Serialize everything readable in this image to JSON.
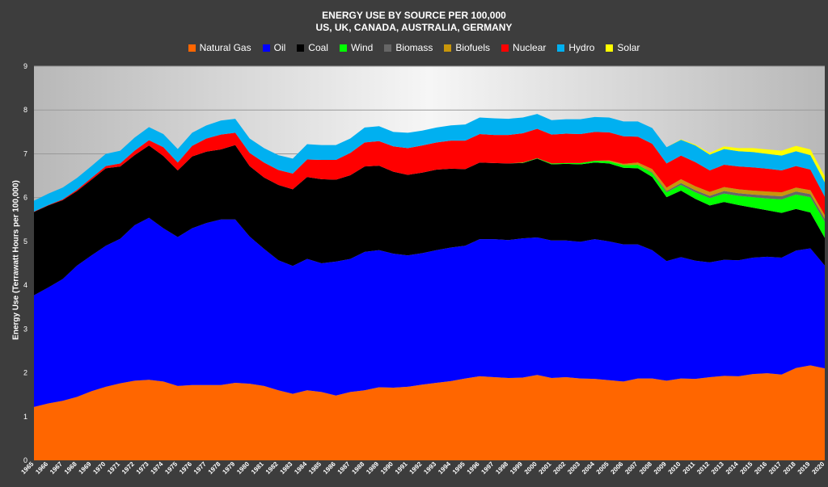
{
  "chart_data": {
    "type": "area",
    "stacked": true,
    "title": "ENERGY USE BY SOURCE PER 100,000",
    "subtitle": "US, UK, CANADA, AUSTRALIA, GERMANY",
    "xlabel": "",
    "ylabel": "Energy Use (Terrawatt Hours per 100,000)",
    "ylim": [
      0,
      9
    ],
    "yticks": [
      0,
      1,
      2,
      3,
      4,
      5,
      6,
      7,
      8,
      9
    ],
    "grid": true,
    "legend_position": "top",
    "x": [
      1965,
      1966,
      1967,
      1968,
      1969,
      1970,
      1971,
      1972,
      1973,
      1974,
      1975,
      1976,
      1977,
      1978,
      1979,
      1980,
      1981,
      1982,
      1983,
      1984,
      1985,
      1986,
      1987,
      1988,
      1989,
      1990,
      1991,
      1992,
      1993,
      1994,
      1995,
      1996,
      1997,
      1998,
      1999,
      2000,
      2001,
      2002,
      2003,
      2004,
      2005,
      2006,
      2007,
      2008,
      2009,
      2010,
      2011,
      2012,
      2013,
      2014,
      2015,
      2016,
      2017,
      2018,
      2019,
      2020
    ],
    "series": [
      {
        "name": "Natural Gas",
        "color": "#ff6600",
        "values": [
          1.22,
          1.3,
          1.36,
          1.45,
          1.58,
          1.68,
          1.76,
          1.82,
          1.84,
          1.8,
          1.7,
          1.72,
          1.72,
          1.72,
          1.77,
          1.75,
          1.7,
          1.6,
          1.52,
          1.6,
          1.56,
          1.48,
          1.56,
          1.6,
          1.67,
          1.66,
          1.68,
          1.73,
          1.77,
          1.81,
          1.87,
          1.92,
          1.9,
          1.88,
          1.89,
          1.95,
          1.88,
          1.9,
          1.87,
          1.86,
          1.83,
          1.8,
          1.87,
          1.87,
          1.82,
          1.87,
          1.86,
          1.9,
          1.93,
          1.92,
          1.97,
          1.99,
          1.96,
          2.11,
          2.17,
          2.1
        ]
      },
      {
        "name": "Oil",
        "color": "#0000ff",
        "values": [
          2.55,
          2.65,
          2.78,
          3.0,
          3.1,
          3.22,
          3.3,
          3.55,
          3.7,
          3.5,
          3.4,
          3.58,
          3.7,
          3.78,
          3.73,
          3.36,
          3.13,
          2.97,
          2.92,
          3.0,
          2.94,
          3.06,
          3.04,
          3.16,
          3.13,
          3.06,
          3.0,
          3.0,
          3.03,
          3.05,
          3.03,
          3.13,
          3.15,
          3.15,
          3.18,
          3.14,
          3.14,
          3.12,
          3.12,
          3.19,
          3.17,
          3.13,
          3.06,
          2.93,
          2.73,
          2.77,
          2.7,
          2.62,
          2.65,
          2.65,
          2.66,
          2.66,
          2.67,
          2.68,
          2.67,
          2.35
        ]
      },
      {
        "name": "Coal",
        "color": "#000000",
        "values": [
          1.9,
          1.87,
          1.8,
          1.7,
          1.73,
          1.77,
          1.65,
          1.6,
          1.65,
          1.65,
          1.52,
          1.64,
          1.63,
          1.6,
          1.7,
          1.61,
          1.63,
          1.72,
          1.75,
          1.87,
          1.92,
          1.87,
          1.91,
          1.95,
          1.93,
          1.87,
          1.84,
          1.84,
          1.84,
          1.8,
          1.75,
          1.75,
          1.74,
          1.75,
          1.72,
          1.8,
          1.74,
          1.75,
          1.77,
          1.75,
          1.78,
          1.75,
          1.74,
          1.67,
          1.46,
          1.52,
          1.41,
          1.3,
          1.32,
          1.26,
          1.14,
          1.06,
          1.02,
          0.95,
          0.82,
          0.63
        ]
      },
      {
        "name": "Wind",
        "color": "#00ff00",
        "values": [
          0,
          0,
          0,
          0,
          0,
          0,
          0,
          0,
          0,
          0,
          0,
          0,
          0,
          0,
          0,
          0,
          0,
          0,
          0,
          0,
          0,
          0,
          0,
          0,
          0,
          0,
          0,
          0,
          0,
          0,
          0,
          0,
          0,
          0,
          0.01,
          0.01,
          0.02,
          0.02,
          0.03,
          0.04,
          0.05,
          0.06,
          0.08,
          0.09,
          0.11,
          0.13,
          0.15,
          0.17,
          0.19,
          0.21,
          0.24,
          0.27,
          0.31,
          0.33,
          0.35,
          0.37
        ]
      },
      {
        "name": "Biomass",
        "color": "#666666",
        "values": [
          0,
          0,
          0,
          0,
          0,
          0,
          0,
          0,
          0,
          0,
          0,
          0,
          0,
          0,
          0,
          0,
          0,
          0,
          0,
          0,
          0,
          0,
          0,
          0,
          0,
          0,
          0,
          0,
          0,
          0,
          0,
          0,
          0,
          0,
          0,
          0,
          0,
          0,
          0,
          0,
          0,
          0,
          0,
          0.02,
          0.03,
          0.04,
          0.05,
          0.05,
          0.06,
          0.06,
          0.06,
          0.07,
          0.07,
          0.07,
          0.07,
          0.07
        ]
      },
      {
        "name": "Biofuels",
        "color": "#c8960a",
        "values": [
          0,
          0,
          0,
          0,
          0,
          0,
          0,
          0,
          0,
          0,
          0,
          0,
          0,
          0,
          0,
          0,
          0,
          0,
          0,
          0,
          0,
          0,
          0,
          0,
          0,
          0,
          0,
          0,
          0,
          0,
          0,
          0,
          0,
          0,
          0,
          0,
          0,
          0,
          0,
          0,
          0.02,
          0.03,
          0.05,
          0.07,
          0.08,
          0.09,
          0.09,
          0.09,
          0.09,
          0.09,
          0.09,
          0.09,
          0.09,
          0.09,
          0.09,
          0.08
        ]
      },
      {
        "name": "Nuclear",
        "color": "#ff0000",
        "values": [
          0.01,
          0.01,
          0.02,
          0.03,
          0.04,
          0.05,
          0.07,
          0.1,
          0.12,
          0.2,
          0.18,
          0.24,
          0.3,
          0.34,
          0.28,
          0.3,
          0.34,
          0.34,
          0.36,
          0.4,
          0.44,
          0.45,
          0.51,
          0.55,
          0.56,
          0.58,
          0.61,
          0.62,
          0.62,
          0.64,
          0.65,
          0.65,
          0.64,
          0.65,
          0.67,
          0.67,
          0.66,
          0.67,
          0.66,
          0.66,
          0.64,
          0.63,
          0.59,
          0.58,
          0.55,
          0.54,
          0.55,
          0.49,
          0.51,
          0.52,
          0.53,
          0.52,
          0.5,
          0.49,
          0.47,
          0.42
        ]
      },
      {
        "name": "Hydro",
        "color": "#00b0f0",
        "values": [
          0.25,
          0.26,
          0.27,
          0.27,
          0.27,
          0.28,
          0.29,
          0.3,
          0.3,
          0.3,
          0.31,
          0.3,
          0.3,
          0.32,
          0.32,
          0.33,
          0.33,
          0.34,
          0.34,
          0.35,
          0.34,
          0.34,
          0.33,
          0.34,
          0.34,
          0.33,
          0.35,
          0.34,
          0.34,
          0.35,
          0.37,
          0.38,
          0.38,
          0.37,
          0.36,
          0.34,
          0.33,
          0.33,
          0.34,
          0.34,
          0.34,
          0.34,
          0.35,
          0.36,
          0.37,
          0.36,
          0.38,
          0.36,
          0.36,
          0.35,
          0.35,
          0.34,
          0.34,
          0.34,
          0.33,
          0.33
        ]
      },
      {
        "name": "Solar",
        "color": "#ffff00",
        "values": [
          0,
          0,
          0,
          0,
          0,
          0,
          0,
          0,
          0,
          0,
          0,
          0,
          0,
          0,
          0,
          0,
          0,
          0,
          0,
          0,
          0,
          0,
          0,
          0,
          0,
          0,
          0,
          0,
          0,
          0,
          0,
          0,
          0,
          0,
          0,
          0,
          0,
          0,
          0,
          0,
          0,
          0,
          0,
          0,
          0,
          0.01,
          0.02,
          0.04,
          0.06,
          0.07,
          0.09,
          0.1,
          0.11,
          0.12,
          0.13,
          0.14
        ]
      }
    ]
  }
}
